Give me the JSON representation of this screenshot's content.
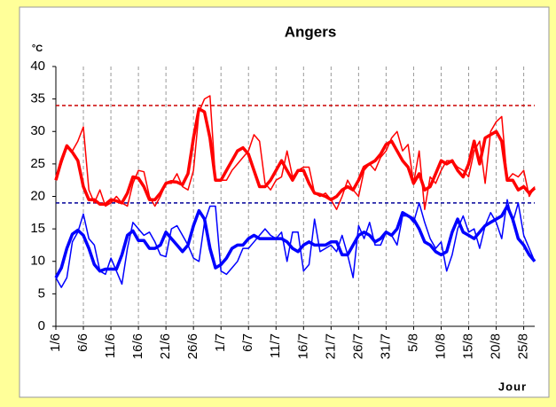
{
  "chart_data": {
    "type": "line",
    "title": "Angers",
    "y_unit": "°C",
    "x_label": "Jour",
    "categories": [
      "1/6",
      null,
      null,
      null,
      null,
      "6/6",
      null,
      null,
      null,
      null,
      "11/6",
      null,
      null,
      null,
      null,
      "16/6",
      null,
      null,
      null,
      null,
      "21/6",
      null,
      null,
      null,
      null,
      "26/6",
      null,
      null,
      null,
      null,
      "1/7",
      null,
      null,
      null,
      null,
      "6/7",
      null,
      null,
      null,
      null,
      "11/7",
      null,
      null,
      null,
      null,
      "16/7",
      null,
      null,
      null,
      null,
      "21/7",
      null,
      null,
      null,
      null,
      "26/7",
      null,
      null,
      null,
      null,
      "31/7",
      null,
      null,
      null,
      null,
      "5/8",
      null,
      null,
      null,
      null,
      "10/8",
      null,
      null,
      null,
      null,
      "15/8",
      null,
      null,
      null,
      null,
      "20/8",
      null,
      null,
      null,
      null,
      "25/8",
      null,
      null
    ],
    "series": [
      {
        "color": "#ff0000",
        "line_width": 1.5,
        "values": [
          22.5,
          25,
          27.5,
          27,
          28.5,
          30.7,
          21,
          19,
          21,
          18.5,
          19,
          20,
          19,
          18.5,
          22,
          24,
          23.8,
          20,
          18.5,
          20,
          22,
          22,
          23.5,
          21.5,
          21,
          24,
          33,
          35,
          35.5,
          22.5,
          22.5,
          22.5,
          24,
          25,
          26,
          27,
          29.5,
          28.5,
          22,
          21,
          22.5,
          23,
          27,
          23,
          24,
          24.5,
          24.5,
          20.5,
          20,
          20.5,
          19.5,
          18,
          20,
          22.5,
          21,
          20,
          24,
          25,
          24,
          26,
          27,
          29,
          30,
          27,
          28,
          22,
          27,
          18,
          23,
          22,
          24,
          25.5,
          25.5,
          24.5,
          24,
          23,
          27,
          28.5,
          22,
          30,
          31.5,
          32.3,
          22.5,
          23.5,
          23,
          24,
          20,
          21.5
        ]
      },
      {
        "color": "#ff0000",
        "line_width": 3.5,
        "values": [
          22.5,
          25.5,
          27.8,
          26.8,
          25.5,
          21.5,
          19.5,
          19.5,
          18.8,
          18.8,
          19.5,
          19.3,
          19,
          20.5,
          23,
          22.8,
          21.5,
          19.5,
          19.5,
          20.5,
          22,
          22.3,
          22.2,
          21.8,
          23.5,
          29,
          33.5,
          33,
          29,
          22.5,
          22.5,
          24,
          25.5,
          27,
          27.5,
          26.5,
          24,
          21.5,
          21.5,
          22.5,
          24,
          25.5,
          24,
          22.5,
          24,
          24,
          22,
          20.5,
          20.3,
          20,
          19.5,
          20,
          21,
          21.5,
          21,
          22.5,
          24.5,
          25,
          25.5,
          26.5,
          28,
          28.5,
          27,
          25.5,
          24.5,
          22,
          23.5,
          21,
          21.5,
          23.5,
          25.5,
          25,
          25.5,
          24,
          23,
          25,
          28.5,
          25,
          29,
          29.5,
          30,
          28.5,
          22.5,
          22.5,
          21,
          21.5,
          20.5,
          21.3
        ]
      },
      {
        "color": "#0000ff",
        "line_width": 1.5,
        "values": [
          7.5,
          6,
          7.5,
          13,
          14.5,
          17.3,
          13.5,
          12.5,
          8.5,
          8,
          10.5,
          8.5,
          6.5,
          12,
          16,
          15,
          14,
          14.5,
          13,
          11,
          10.7,
          15,
          15.5,
          14,
          12.5,
          10.5,
          10,
          16,
          18.5,
          18.5,
          8.5,
          8,
          9,
          10,
          12,
          12,
          13,
          14,
          15,
          14,
          13.5,
          14.5,
          10,
          14.5,
          14.5,
          8.5,
          9.5,
          16.5,
          11.5,
          12,
          12.5,
          11.5,
          14,
          11,
          7.5,
          15.5,
          13.5,
          16,
          12.5,
          12.5,
          14.5,
          14,
          12.5,
          17,
          17,
          16,
          19,
          16,
          13.5,
          12,
          13,
          8.5,
          11,
          15,
          17,
          14.5,
          15,
          12,
          15.5,
          17.5,
          16,
          13.5,
          19.5,
          16,
          19,
          14,
          12,
          10
        ]
      },
      {
        "color": "#0000ff",
        "line_width": 3.5,
        "values": [
          7.5,
          9,
          12,
          14.2,
          14.8,
          14,
          12,
          9.5,
          8.5,
          8.8,
          8.8,
          8.8,
          11,
          14,
          14.7,
          13.2,
          13.2,
          12,
          12,
          12.5,
          14.5,
          13.5,
          12.5,
          11.5,
          12.5,
          15.5,
          17.8,
          16.5,
          12,
          9,
          9.5,
          10.5,
          12,
          12.5,
          12.5,
          13.5,
          14,
          13.5,
          13.5,
          13.5,
          13.5,
          13.5,
          13,
          12,
          11.5,
          12.5,
          13,
          12.5,
          12.5,
          12.5,
          13,
          13,
          11,
          11,
          12.5,
          14,
          14.5,
          14,
          13,
          13.5,
          14.5,
          14,
          15,
          17.5,
          17,
          16.5,
          15,
          13,
          12.5,
          11.5,
          11,
          11.5,
          14.5,
          16.5,
          14.5,
          14,
          13.5,
          14.5,
          15.5,
          16,
          16.5,
          17,
          18.5,
          16.5,
          13.5,
          12.5,
          11,
          10
        ]
      }
    ],
    "reference_lines": [
      {
        "value": 34,
        "color": "#cc0000"
      },
      {
        "value": 19,
        "color": "#000099"
      }
    ],
    "ylim": [
      0,
      40
    ],
    "yticks": [
      0,
      5,
      10,
      15,
      20,
      25,
      30,
      35,
      40
    ],
    "x_grid": true
  }
}
